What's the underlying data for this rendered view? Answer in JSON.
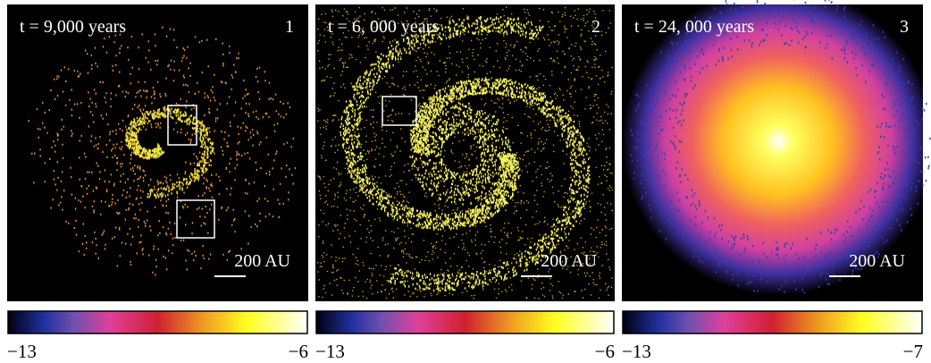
{
  "panels": [
    {
      "time": "t = 9,000 years",
      "index": "1",
      "scale": "200 AU",
      "colorbar": {
        "min": "−13",
        "max": "−6"
      }
    },
    {
      "time": "t = 6, 000 years",
      "index": "2",
      "scale": "200 AU",
      "colorbar": {
        "min": "−13",
        "max": "−6"
      }
    },
    {
      "time": "t = 24, 000 years",
      "index": "3",
      "scale": "200 AU",
      "colorbar": {
        "min": "−13",
        "max": "−7"
      }
    }
  ]
}
